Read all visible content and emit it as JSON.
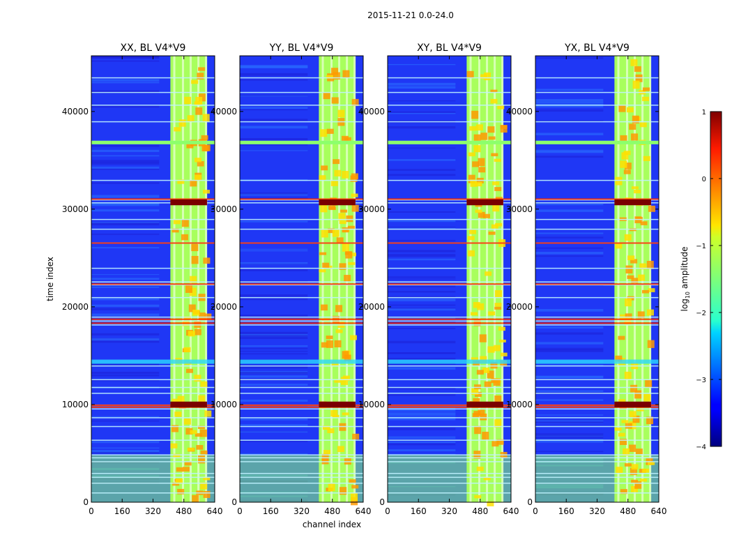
{
  "chart_data": {
    "type": "heatmap",
    "suptitle": "2015-11-21 0.0-24.0",
    "xlabel": "channel index",
    "ylabel": "time index",
    "xlim": [
      0,
      640
    ],
    "ylim": [
      0,
      45700
    ],
    "xticks": [
      0,
      160,
      320,
      480,
      640
    ],
    "yticks": [
      0,
      10000,
      20000,
      30000,
      40000
    ],
    "panels": [
      {
        "title": "XX, BL V4*V9"
      },
      {
        "title": "YY, BL V4*V9"
      },
      {
        "title": "XY, BL V4*V9"
      },
      {
        "title": "YX, BL V4*V9"
      }
    ],
    "colorbar": {
      "label": "log10 amplitude",
      "label_text": "log",
      "label_sub": "10",
      "label_rest": " amplitude",
      "min": -4,
      "max": 1,
      "ticks": [
        1,
        0,
        -1,
        -2,
        -3,
        -4
      ],
      "tick_labels": [
        "1",
        "0",
        "−1",
        "−2",
        "−3",
        "−4"
      ],
      "colormap": "jet"
    },
    "bright_channel_band": [
      410,
      600
    ],
    "rfi_rows": [
      1000,
      2000,
      2600,
      3000,
      4200,
      4600,
      4900,
      6400,
      7800,
      8700,
      9600,
      9800,
      10000,
      11200,
      11800,
      12600,
      14000,
      18200,
      18600,
      19000,
      21000,
      22300,
      22600,
      24000,
      26600,
      28000,
      29000,
      30700,
      31000,
      33000,
      36800,
      37000,
      39000,
      40700,
      42000,
      43500
    ],
    "hot_rows": [
      9800,
      10000,
      18400,
      18800,
      22400,
      26600,
      31100
    ],
    "colors": {
      "background_low": "#1f2fff",
      "band_mid": "#a8ff5c",
      "hot": "#7a0000",
      "frame": "#000000"
    }
  }
}
